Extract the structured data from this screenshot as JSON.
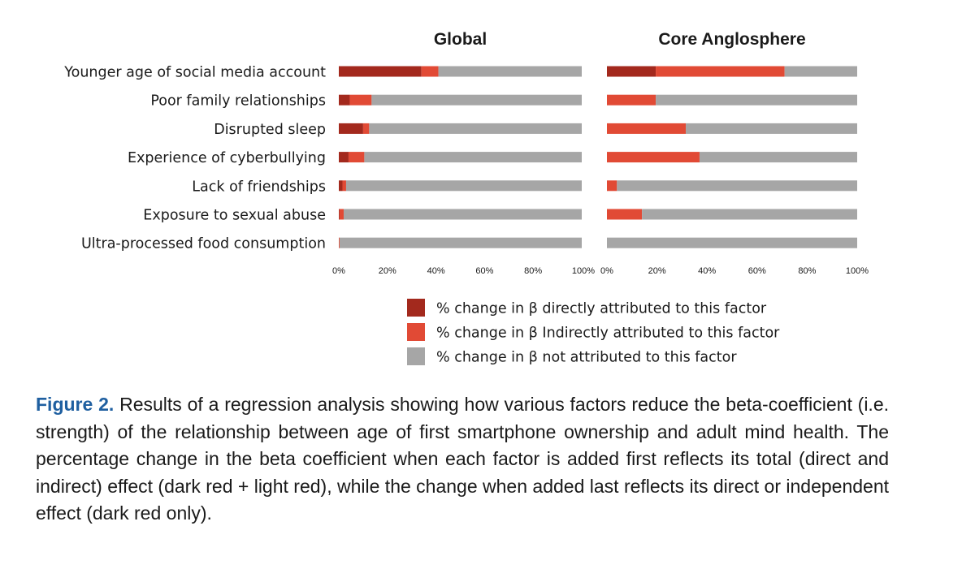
{
  "chart_data": {
    "type": "bar",
    "orientation": "horizontal",
    "stacked": true,
    "categories": [
      "Younger age of social media account",
      "Poor family relationships",
      "Disrupted sleep",
      "Experience of cyberbullying",
      "Lack of friendships",
      "Exposure to sexual abuse",
      "Ultra-processed food consumption"
    ],
    "x_ticks": [
      "0%",
      "20%",
      "40%",
      "60%",
      "80%",
      "100%"
    ],
    "xlim": [
      0,
      100
    ],
    "panels": [
      {
        "title": "Global",
        "series": [
          {
            "name": "% change in β directly attributed to this factor",
            "color": "#a3291d",
            "values": [
              34,
              4.5,
              10,
              4,
              1.5,
              0.3,
              0
            ]
          },
          {
            "name": "% change in β Indirectly attributed to this factor",
            "color": "#e14a35",
            "values": [
              7,
              9,
              2.5,
              6.5,
              1.5,
              1.7,
              0.3
            ]
          },
          {
            "name": "% change in β not attributed to this factor",
            "color": "#a6a6a6",
            "values": [
              59,
              86.5,
              87.5,
              89.5,
              97,
              98,
              99.7
            ]
          }
        ]
      },
      {
        "title": "Core Anglosphere",
        "series": [
          {
            "name": "% change in β directly attributed to this factor",
            "color": "#a3291d",
            "values": [
              19.5,
              0,
              0,
              0,
              0,
              0,
              0
            ]
          },
          {
            "name": "% change in β Indirectly attributed to this factor",
            "color": "#e14a35",
            "values": [
              51.5,
              19.5,
              31.5,
              37,
              4,
              14,
              0
            ]
          },
          {
            "name": "% change in β not attributed to this factor",
            "color": "#a6a6a6",
            "values": [
              29,
              80.5,
              68.5,
              63,
              96,
              86,
              100
            ]
          }
        ]
      }
    ],
    "legend": {
      "position": "bottom-center",
      "entries": [
        {
          "label": "% change in β directly attributed to this factor",
          "color": "#a3291d"
        },
        {
          "label": "% change in β Indirectly attributed to this factor",
          "color": "#e14a35"
        },
        {
          "label": "% change in β not attributed to this factor",
          "color": "#a6a6a6"
        }
      ]
    }
  },
  "caption": {
    "label": "Figure 2.",
    "text": "Results of a regression analysis showing how various factors reduce the beta-coefficient (i.e. strength) of the relationship between age of first smartphone ownership and adult mind health. The percentage change in the beta coefficient when each factor is added first reflects its total (direct and indirect) effect (dark red + light red), while the change when added last reflects its direct or independent effect (dark red only)."
  }
}
